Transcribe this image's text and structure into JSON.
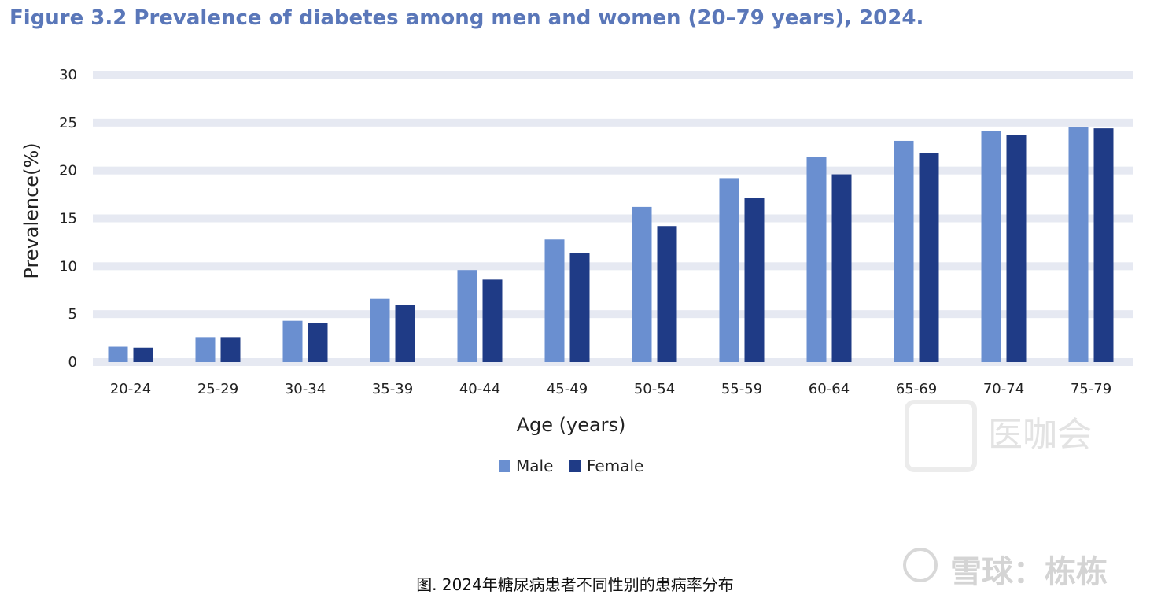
{
  "chart_data": {
    "type": "bar",
    "title": "Figure 3.2 Prevalence of diabetes among men and women (20–79 years), 2024.",
    "xlabel": "Age (years)",
    "ylabel": "Prevalence(%)",
    "ylim": [
      0,
      30
    ],
    "yticks": [
      "0",
      "5",
      "10",
      "15",
      "20",
      "25",
      "30"
    ],
    "categories": [
      "20-24",
      "25-29",
      "30-34",
      "35-39",
      "40-44",
      "45-49",
      "50-54",
      "55-59",
      "60-64",
      "65-69",
      "70-74",
      "75-79"
    ],
    "series": [
      {
        "name": "Male",
        "color": "#6a8fd0",
        "values": [
          1.6,
          2.6,
          4.3,
          6.6,
          9.6,
          12.8,
          16.2,
          19.2,
          21.4,
          23.1,
          24.1,
          24.5
        ]
      },
      {
        "name": "Female",
        "color": "#1f3b86",
        "values": [
          1.5,
          2.6,
          4.1,
          6.0,
          8.6,
          11.4,
          14.2,
          17.1,
          19.6,
          21.8,
          23.7,
          24.4
        ]
      }
    ],
    "grid": true,
    "grid_color": "#e6e9f2",
    "legend_position": "bottom"
  },
  "caption": "图. 2024年糖尿病患者不同性别的患病率分布",
  "watermarks": {
    "top_right": "医咖会",
    "bottom_right": "雪球：栋栋"
  }
}
